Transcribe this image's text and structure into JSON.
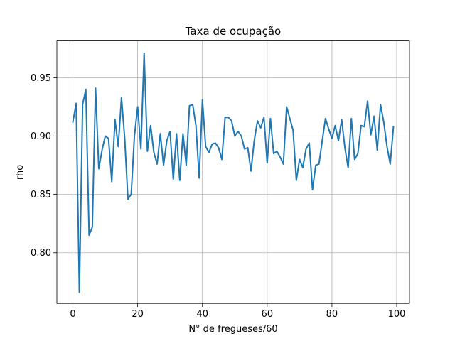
{
  "chart_data": {
    "type": "line",
    "title": "Taxa de ocupação",
    "xlabel": "N° de fregueses/60",
    "ylabel": "rho",
    "xlim": [
      -4.95,
      103.95
    ],
    "ylim": [
      0.7565,
      0.9815
    ],
    "xticks": [
      0,
      20,
      40,
      60,
      80,
      100
    ],
    "xtick_labels": [
      "0",
      "20",
      "40",
      "60",
      "80",
      "100"
    ],
    "yticks": [
      0.8,
      0.85,
      0.9,
      0.95
    ],
    "ytick_labels": [
      "0.80",
      "0.85",
      "0.90",
      "0.95"
    ],
    "grid": true,
    "series": [
      {
        "color": "#1f77b4",
        "x": [
          0,
          1,
          2,
          3,
          4,
          5,
          6,
          7,
          8,
          9,
          10,
          11,
          12,
          13,
          14,
          15,
          16,
          17,
          18,
          19,
          20,
          21,
          22,
          23,
          24,
          25,
          26,
          27,
          28,
          29,
          30,
          31,
          32,
          33,
          34,
          35,
          36,
          37,
          38,
          39,
          40,
          41,
          42,
          43,
          44,
          45,
          46,
          47,
          48,
          49,
          50,
          51,
          52,
          53,
          54,
          55,
          56,
          57,
          58,
          59,
          60,
          61,
          62,
          63,
          64,
          65,
          66,
          67,
          68,
          69,
          70,
          71,
          72,
          73,
          74,
          75,
          76,
          77,
          78,
          79,
          80,
          81,
          82,
          83,
          84,
          85,
          86,
          87,
          88,
          89,
          90,
          91,
          92,
          93,
          94,
          95,
          96,
          97,
          98,
          99
        ],
        "y": [
          0.912,
          0.928,
          0.766,
          0.927,
          0.94,
          0.815,
          0.822,
          0.941,
          0.872,
          0.888,
          0.9,
          0.898,
          0.861,
          0.914,
          0.891,
          0.933,
          0.898,
          0.846,
          0.85,
          0.9,
          0.925,
          0.889,
          0.971,
          0.887,
          0.909,
          0.886,
          0.876,
          0.902,
          0.875,
          0.896,
          0.904,
          0.863,
          0.902,
          0.862,
          0.902,
          0.875,
          0.926,
          0.927,
          0.909,
          0.864,
          0.931,
          0.891,
          0.886,
          0.893,
          0.894,
          0.89,
          0.88,
          0.916,
          0.916,
          0.913,
          0.9,
          0.904,
          0.9,
          0.889,
          0.89,
          0.87,
          0.896,
          0.913,
          0.907,
          0.916,
          0.877,
          0.915,
          0.885,
          0.887,
          0.882,
          0.876,
          0.925,
          0.915,
          0.905,
          0.862,
          0.88,
          0.873,
          0.889,
          0.894,
          0.854,
          0.875,
          0.876,
          0.896,
          0.915,
          0.906,
          0.898,
          0.909,
          0.896,
          0.914,
          0.89,
          0.873,
          0.915,
          0.88,
          0.885,
          0.909,
          0.908,
          0.93,
          0.901,
          0.917,
          0.888,
          0.927,
          0.912,
          0.891,
          0.876,
          0.908
        ]
      }
    ]
  }
}
